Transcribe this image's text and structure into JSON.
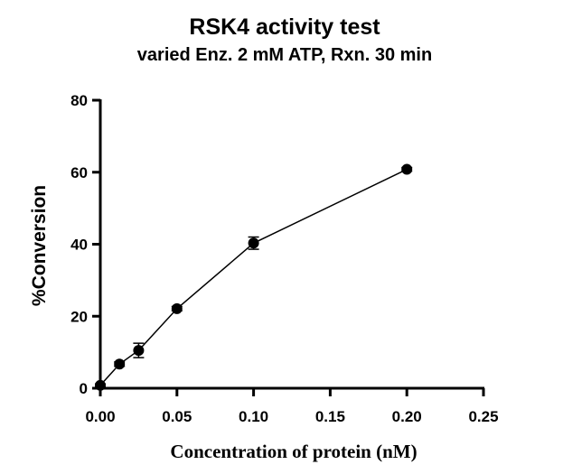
{
  "chart_data": {
    "type": "line",
    "title": "RSK4  activity test",
    "subtitle": "varied Enz. 2 mM ATP, Rxn. 30 min",
    "xlabel": "Concentration of protein (nM)",
    "ylabel": "%Conversion",
    "xlim": [
      0,
      0.25
    ],
    "ylim": [
      0,
      80
    ],
    "x_ticks": [
      "0.00",
      "0.05",
      "0.10",
      "0.15",
      "0.20",
      "0.25"
    ],
    "y_ticks": [
      "0",
      "20",
      "40",
      "60",
      "80"
    ],
    "grid": false,
    "series": [
      {
        "x": [
          0,
          0.0125,
          0.025,
          0.05,
          0.1,
          0.2
        ],
        "values": [
          0.8,
          6.7,
          10.5,
          22.1,
          40.3,
          60.8
        ],
        "error": [
          0.4,
          0.6,
          2.0,
          0.6,
          1.7,
          0.5
        ]
      }
    ],
    "colors": {
      "line": "#000000",
      "marker": "#000000"
    }
  }
}
